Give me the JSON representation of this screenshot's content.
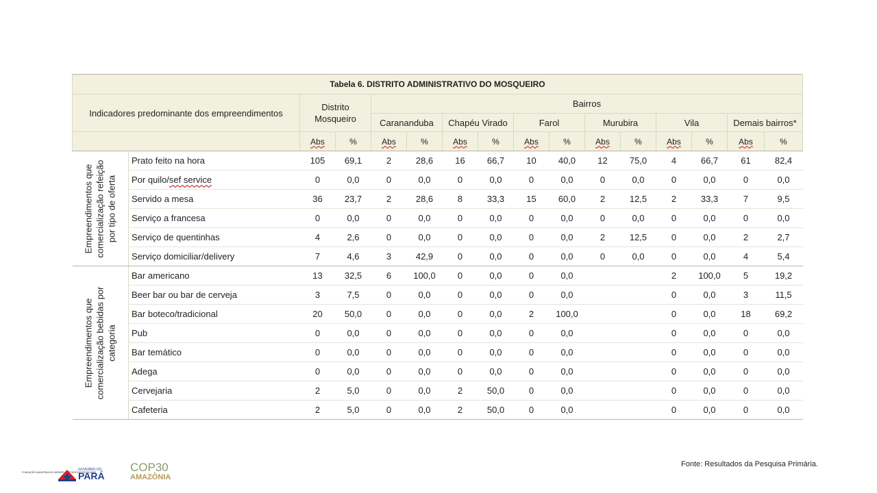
{
  "table": {
    "title": "Tabela 6. DISTRITO ADMINISTRATIVO DO MOSQUEIRO",
    "indicator_header": "Indicadores predominante dos empreendimentos",
    "distrito_header": "Distrito Mosqueiro",
    "bairros_header": "Bairros",
    "bairros": [
      "Carananduba",
      "Chapéu Virado",
      "Farol",
      "Murubira",
      "Vila",
      "Demais bairros*"
    ],
    "abs_label": "Abs",
    "pct_label": "%",
    "groups": [
      {
        "label": "Empreendimentos que comercialização refeição por tipo de oferta",
        "rows": [
          {
            "label": "Prato feito na hora",
            "values": [
              "105",
              "69,1",
              "2",
              "28,6",
              "16",
              "66,7",
              "10",
              "40,0",
              "12",
              "75,0",
              "4",
              "66,7",
              "61",
              "82,4"
            ]
          },
          {
            "label": "Por quilo/sef service",
            "values": [
              "0",
              "0,0",
              "0",
              "0,0",
              "0",
              "0,0",
              "0",
              "0,0",
              "0",
              "0,0",
              "0",
              "0,0",
              "0",
              "0,0"
            ]
          },
          {
            "label": "Servido a mesa",
            "values": [
              "36",
              "23,7",
              "2",
              "28,6",
              "8",
              "33,3",
              "15",
              "60,0",
              "2",
              "12,5",
              "2",
              "33,3",
              "7",
              "9,5"
            ]
          },
          {
            "label": "Serviço a francesa",
            "values": [
              "0",
              "0,0",
              "0",
              "0,0",
              "0",
              "0,0",
              "0",
              "0,0",
              "0",
              "0,0",
              "0",
              "0,0",
              "0",
              "0,0"
            ]
          },
          {
            "label": "Serviço de quentinhas",
            "values": [
              "4",
              "2,6",
              "0",
              "0,0",
              "0",
              "0,0",
              "0",
              "0,0",
              "2",
              "12,5",
              "0",
              "0,0",
              "2",
              "2,7"
            ]
          },
          {
            "label": "Serviço domiciliar/delivery",
            "values": [
              "7",
              "4,6",
              "3",
              "42,9",
              "0",
              "0,0",
              "0",
              "0,0",
              "0",
              "0,0",
              "0",
              "0,0",
              "4",
              "5,4"
            ]
          }
        ]
      },
      {
        "label": "Empreendimentos que comercialização bebidas por categoria",
        "rows": [
          {
            "label": "Bar americano",
            "values": [
              "13",
              "32,5",
              "6",
              "100,0",
              "0",
              "0,0",
              "0",
              "0,0",
              "",
              "",
              "2",
              "100,0",
              "5",
              "19,2"
            ]
          },
          {
            "label": "Beer bar ou bar de cerveja",
            "values": [
              "3",
              "7,5",
              "0",
              "0,0",
              "0",
              "0,0",
              "0",
              "0,0",
              "",
              "",
              "0",
              "0,0",
              "3",
              "11,5"
            ]
          },
          {
            "label": "Bar boteco/tradicional",
            "values": [
              "20",
              "50,0",
              "0",
              "0,0",
              "0",
              "0,0",
              "2",
              "100,0",
              "",
              "",
              "0",
              "0,0",
              "18",
              "69,2"
            ]
          },
          {
            "label": "Pub",
            "values": [
              "0",
              "0,0",
              "0",
              "0,0",
              "0",
              "0,0",
              "0",
              "0,0",
              "",
              "",
              "0",
              "0,0",
              "0",
              "0,0"
            ]
          },
          {
            "label": "Bar temático",
            "values": [
              "0",
              "0,0",
              "0",
              "0,0",
              "0",
              "0,0",
              "0",
              "0,0",
              "",
              "",
              "0",
              "0,0",
              "0",
              "0,0"
            ]
          },
          {
            "label": "Adega",
            "values": [
              "0",
              "0,0",
              "0",
              "0,0",
              "0",
              "0,0",
              "0",
              "0,0",
              "",
              "",
              "0",
              "0,0",
              "0",
              "0,0"
            ]
          },
          {
            "label": "Cervejaria",
            "values": [
              "2",
              "5,0",
              "0",
              "0,0",
              "2",
              "50,0",
              "0",
              "0,0",
              "",
              "",
              "0",
              "0,0",
              "0",
              "0,0"
            ]
          },
          {
            "label": "Cafeteria",
            "values": [
              "2",
              "5,0",
              "0",
              "0,0",
              "2",
              "50,0",
              "0",
              "0,0",
              "",
              "",
              "0",
              "0,0",
              "0",
              "0,0"
            ]
          }
        ]
      }
    ]
  },
  "source": "Fonte: Resultados da Pesquisa Primária.",
  "logos": {
    "fapespa": "FUNDAÇÃO AMAZÔNIA DE AMPARO A ESTUDOS E PESQUISAS",
    "governo_top": "GOVERNO DO",
    "governo_main": "PARÁ",
    "cop_top": "COP30",
    "cop_bottom": "AMAZÔNIA"
  },
  "colors": {
    "header_bg": "#f2f0de",
    "pa_red": "#d8232a",
    "pa_blue": "#1f3f8f",
    "cop_gold": "#b89a5a"
  }
}
